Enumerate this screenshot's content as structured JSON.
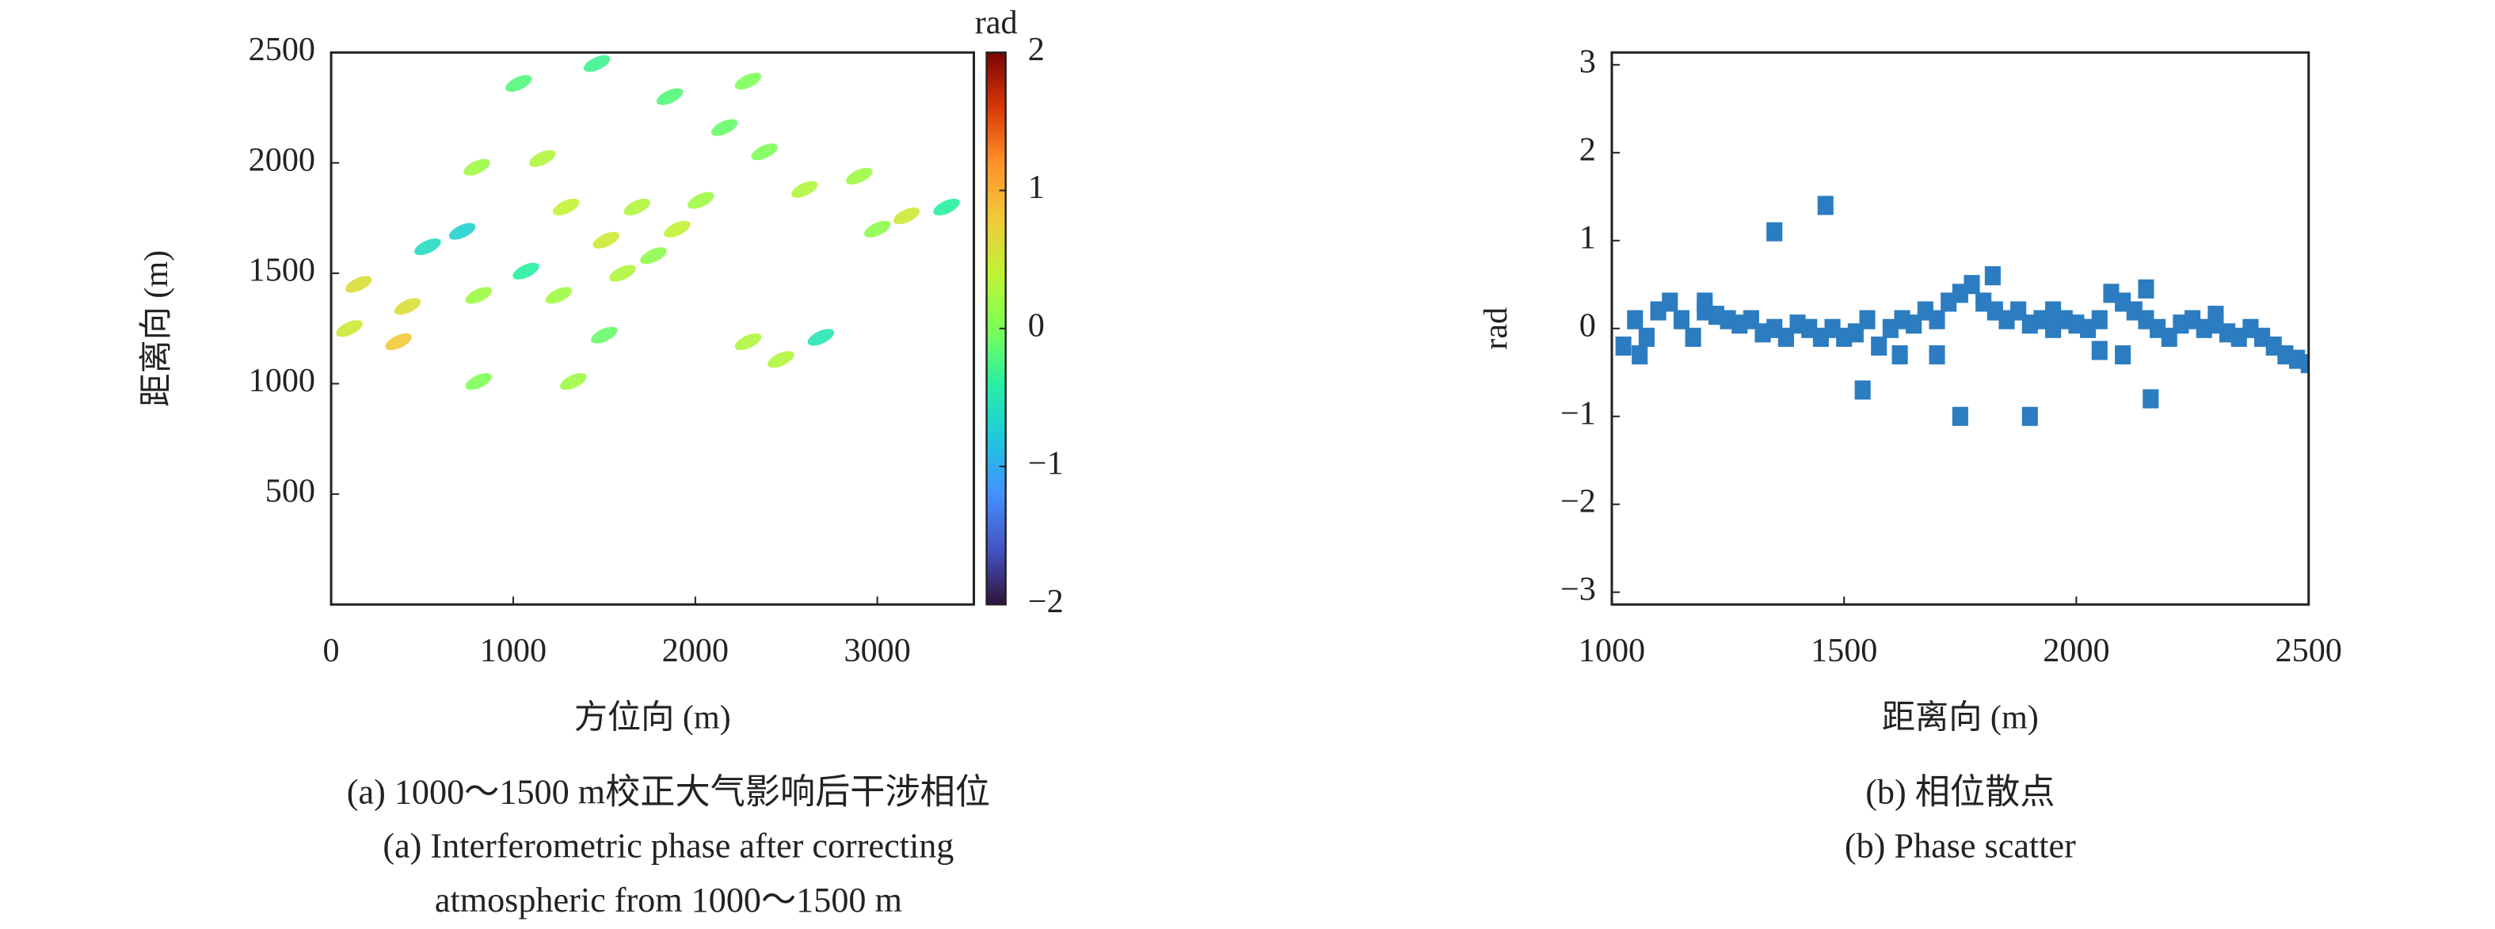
{
  "chart_data": [
    {
      "type": "scatter",
      "x_label": "方位向 (m)",
      "y_label": "距离向 (m)",
      "caption": [
        "(a) 1000～1500 m校正大气影响后干涉相位",
        "(a)  Interferometric phase after correcting",
        "atmospheric from 1000～1500 m"
      ],
      "xlim": [
        0,
        3530
      ],
      "ylim": [
        0,
        2500
      ],
      "xticks": [
        0,
        1000,
        2000,
        3000
      ],
      "yticks": [
        500,
        1000,
        1500,
        2000,
        2500
      ],
      "colormap": "turbo",
      "colorbar": {
        "label": "rad",
        "lim": [
          -2,
          2
        ],
        "ticks": [
          {
            "value": -2,
            "label": "−2"
          },
          {
            "value": -1,
            "label": "−1"
          },
          0,
          1,
          2
        ]
      },
      "x": [
        100,
        150,
        420,
        370,
        530,
        800,
        1160,
        1030,
        1460,
        1680,
        1770,
        1250,
        810,
        1500,
        2030,
        2160,
        2290,
        2470,
        2690,
        2900,
        3160,
        3380,
        2380,
        720,
        1070,
        1330,
        810,
        1860,
        1290,
        1510,
        2290,
        1600,
        1900,
        2600,
        3000
      ],
      "y": [
        1250,
        1450,
        1350,
        1190,
        1620,
        1980,
        2020,
        2360,
        2450,
        1800,
        1580,
        1400,
        1400,
        1220,
        1830,
        2160,
        1190,
        1110,
        1210,
        1940,
        1760,
        1800,
        2050,
        1690,
        1510,
        1010,
        1010,
        2300,
        1800,
        1650,
        2370,
        1500,
        1700,
        1880,
        1700
      ],
      "values": [
        0.5,
        0.6,
        0.6,
        0.8,
        -0.6,
        0.2,
        0.3,
        -0.2,
        -0.3,
        0.3,
        0.1,
        0.2,
        0.2,
        -0.1,
        0.2,
        -0.1,
        0.3,
        0.3,
        -0.5,
        0.2,
        0.5,
        -0.4,
        0,
        -0.7,
        -0.4,
        0.2,
        0,
        -0.2,
        0.4,
        0.5,
        0,
        0.3,
        0.4,
        0.3,
        0.1
      ]
    },
    {
      "type": "scatter",
      "x_label": "距离向 (m)",
      "y_label": "rad",
      "caption": [
        "(b) 相位散点",
        "(b) Phase scatter"
      ],
      "xlim": [
        1000,
        2500
      ],
      "ylim": [
        -3.14,
        3.14
      ],
      "xticks": [
        1000,
        1500,
        2000,
        2500
      ],
      "yticks": [
        {
          "value": -3,
          "label": "−3"
        },
        {
          "value": -2,
          "label": "−2"
        },
        {
          "value": -1,
          "label": "−1"
        },
        0,
        1,
        2,
        3
      ],
      "color": "#2b7cc0",
      "x": [
        1025,
        1050,
        1075,
        1100,
        1125,
        1150,
        1175,
        1200,
        1225,
        1250,
        1275,
        1300,
        1325,
        1350,
        1375,
        1400,
        1425,
        1450,
        1475,
        1500,
        1525,
        1550,
        1575,
        1600,
        1625,
        1650,
        1675,
        1700,
        1725,
        1750,
        1775,
        1800,
        1825,
        1850,
        1875,
        1900,
        1925,
        1950,
        1975,
        2000,
        2025,
        2050,
        2075,
        2100,
        2125,
        2150,
        2175,
        2200,
        2225,
        2250,
        2275,
        2300,
        2325,
        2350,
        2375,
        2400,
        2425,
        2450,
        2475,
        2500,
        1060,
        1200,
        1700,
        2100,
        2050,
        1820,
        2150,
        2300,
        1620,
        1950,
        1350,
        1460,
        1900,
        1750,
        1540,
        2160
      ],
      "y": [
        -0.2,
        0.1,
        -0.1,
        0.2,
        0.3,
        0.1,
        -0.1,
        0.2,
        0.15,
        0.1,
        0.05,
        0.1,
        -0.05,
        0,
        -0.1,
        0.05,
        0,
        -0.1,
        0,
        -0.1,
        -0.05,
        0.1,
        -0.2,
        0,
        0.1,
        0.05,
        0.2,
        0.1,
        0.3,
        0.4,
        0.5,
        0.3,
        0.2,
        0.1,
        0.2,
        0.05,
        0.1,
        0,
        0.1,
        0.05,
        0,
        0.1,
        0.4,
        0.3,
        0.2,
        0.1,
        0,
        -0.1,
        0.05,
        0.1,
        0,
        0.05,
        -0.05,
        -0.1,
        0,
        -0.1,
        -0.2,
        -0.3,
        -0.35,
        -0.4,
        -0.3,
        0.3,
        -0.3,
        -0.3,
        -0.25,
        0.6,
        0.45,
        0.15,
        -0.3,
        0.2,
        1.1,
        1.4,
        -1,
        -1,
        -0.7,
        -0.8
      ]
    }
  ]
}
